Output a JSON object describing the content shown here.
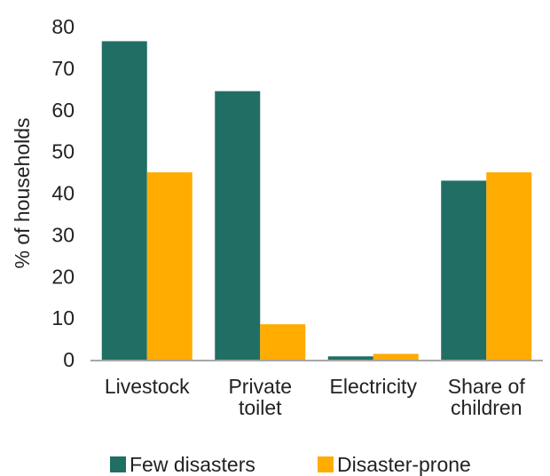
{
  "chart_data": {
    "type": "bar",
    "categories": [
      [
        "Livestock"
      ],
      [
        "Private",
        "toilet"
      ],
      [
        "Electricity"
      ],
      [
        "Share of",
        "children"
      ]
    ],
    "series": [
      {
        "name": "Few disasters",
        "color": "#216e64",
        "values": [
          76.5,
          64.5,
          0.8,
          43
        ]
      },
      {
        "name": "Disaster-prone",
        "color": "#ffab00",
        "values": [
          45,
          8.5,
          1.4,
          45
        ]
      }
    ],
    "ylabel": "% of households",
    "ylim": [
      0,
      80
    ],
    "yticks": [
      0,
      10,
      20,
      30,
      40,
      50,
      60,
      70,
      80
    ],
    "grid": false,
    "legend_position": "bottom"
  }
}
